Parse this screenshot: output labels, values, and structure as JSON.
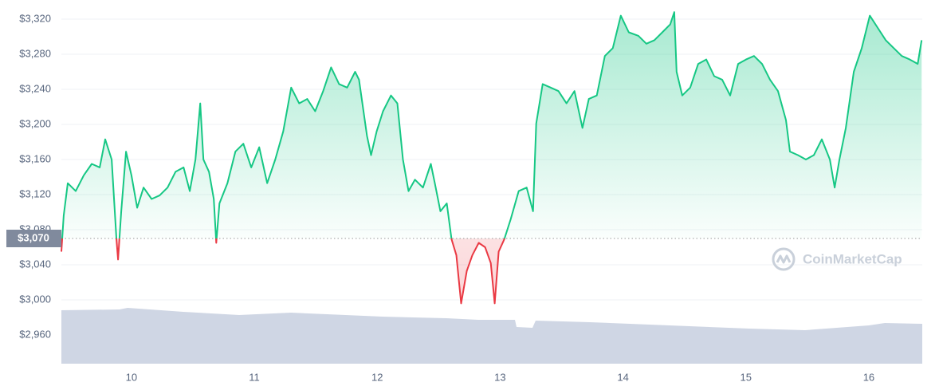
{
  "chart_data": {
    "type": "line",
    "brand": "CoinMarketCap",
    "reference": 3070,
    "reference_label": "$3,070",
    "up_color": "#16c784",
    "down_color": "#ea3943",
    "grid": true,
    "xlim": [
      9.43,
      16.435
    ],
    "xticks": [
      10,
      11,
      12,
      13,
      14,
      15,
      16
    ],
    "ylim": [
      2928,
      3340
    ],
    "yticks": [
      {
        "value": 2960,
        "label": "$2,960"
      },
      {
        "value": 3000,
        "label": "$3,000"
      },
      {
        "value": 3040,
        "label": "$3,040"
      },
      {
        "value": 3080,
        "label": "$3,080"
      },
      {
        "value": 3120,
        "label": "$3,120"
      },
      {
        "value": 3160,
        "label": "$3,160"
      },
      {
        "value": 3200,
        "label": "$3,200"
      },
      {
        "value": 3240,
        "label": "$3,240"
      },
      {
        "value": 3280,
        "label": "$3,280"
      },
      {
        "value": 3320,
        "label": "$3,320"
      }
    ],
    "x": [
      9.43,
      9.449,
      9.482,
      9.547,
      9.612,
      9.677,
      9.742,
      9.787,
      9.839,
      9.878,
      9.891,
      9.917,
      9.956,
      10.0,
      10.047,
      10.099,
      10.164,
      10.229,
      10.294,
      10.359,
      10.424,
      10.475,
      10.521,
      10.56,
      10.586,
      10.631,
      10.67,
      10.69,
      10.716,
      10.781,
      10.846,
      10.911,
      10.975,
      11.04,
      11.105,
      11.17,
      11.235,
      11.3,
      11.365,
      11.43,
      11.495,
      11.56,
      11.625,
      11.69,
      11.755,
      11.82,
      11.852,
      11.917,
      11.95,
      11.995,
      12.047,
      12.112,
      12.164,
      12.209,
      12.255,
      12.307,
      12.372,
      12.436,
      12.469,
      12.514,
      12.566,
      12.605,
      12.644,
      12.683,
      12.729,
      12.774,
      12.826,
      12.878,
      12.924,
      12.956,
      12.988,
      13.034,
      13.086,
      13.151,
      13.216,
      13.268,
      13.294,
      13.346,
      13.411,
      13.475,
      13.54,
      13.605,
      13.67,
      13.722,
      13.787,
      13.852,
      13.917,
      13.982,
      14.047,
      14.125,
      14.19,
      14.255,
      14.32,
      14.384,
      14.417,
      14.436,
      14.482,
      14.547,
      14.612,
      14.677,
      14.742,
      14.807,
      14.872,
      14.937,
      15.001,
      15.066,
      15.131,
      15.196,
      15.261,
      15.326,
      15.358,
      15.423,
      15.488,
      15.553,
      15.618,
      15.683,
      15.722,
      15.761,
      15.813,
      15.878,
      15.943,
      16.008,
      16.073,
      16.138,
      16.203,
      16.268,
      16.333,
      16.398,
      16.43
    ],
    "values": [
      3055,
      3096,
      3133,
      3124,
      3142,
      3155,
      3151,
      3183,
      3160,
      3069,
      3046,
      3101,
      3169,
      3142,
      3105,
      3128,
      3115,
      3119,
      3128,
      3146,
      3151,
      3124,
      3160,
      3224,
      3160,
      3146,
      3115,
      3065,
      3110,
      3133,
      3169,
      3178,
      3151,
      3174,
      3133,
      3160,
      3192,
      3242,
      3224,
      3229,
      3215,
      3238,
      3265,
      3246,
      3242,
      3260,
      3251,
      3187,
      3165,
      3192,
      3215,
      3233,
      3224,
      3160,
      3124,
      3137,
      3128,
      3155,
      3133,
      3101,
      3110,
      3069,
      3051,
      2996,
      3033,
      3051,
      3065,
      3060,
      3042,
      2996,
      3055,
      3069,
      3092,
      3124,
      3128,
      3101,
      3201,
      3246,
      3242,
      3238,
      3224,
      3238,
      3196,
      3229,
      3233,
      3278,
      3287,
      3324,
      3305,
      3301,
      3292,
      3296,
      3305,
      3314,
      3328,
      3260,
      3233,
      3242,
      3269,
      3274,
      3255,
      3251,
      3233,
      3269,
      3274,
      3278,
      3269,
      3251,
      3238,
      3205,
      3169,
      3165,
      3160,
      3165,
      3183,
      3160,
      3128,
      3160,
      3196,
      3260,
      3287,
      3324,
      3310,
      3296,
      3287,
      3278,
      3274,
      3269,
      3296
    ]
  }
}
